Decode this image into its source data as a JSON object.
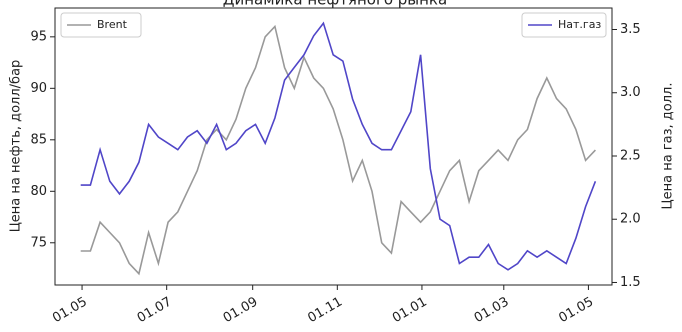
{
  "chart_data": {
    "type": "line",
    "title": "Динамика нефтяного рынка",
    "ylabel": "Цена на нефть, долл/бар",
    "y2label": "Цена на газ, долл.",
    "x": [
      -1,
      6,
      13,
      20,
      27,
      34,
      41,
      48,
      55,
      62,
      69,
      76,
      83,
      90,
      97,
      104,
      111,
      118,
      125,
      132,
      139,
      146,
      153,
      160,
      167,
      174,
      181,
      188,
      195,
      202,
      209,
      216,
      223,
      230,
      237,
      244,
      251,
      258,
      265,
      272,
      279,
      286,
      293,
      300,
      307,
      314,
      321,
      328,
      335,
      342,
      349,
      356,
      363,
      370
    ],
    "xlim": [
      -19.5,
      382
    ],
    "xticks": [
      {
        "value": 0,
        "label": "01.05"
      },
      {
        "value": 61,
        "label": "01.07"
      },
      {
        "value": 123,
        "label": "01.09"
      },
      {
        "value": 184,
        "label": "01.11"
      },
      {
        "value": 245,
        "label": "01.01"
      },
      {
        "value": 304,
        "label": "01.03"
      },
      {
        "value": 365,
        "label": "01.05"
      }
    ],
    "ylim": [
      70.9,
      97.8
    ],
    "yticks": [
      75,
      80,
      85,
      90,
      95
    ],
    "y2lim": [
      1.48,
      3.67
    ],
    "y2ticks": [
      1.5,
      {
        "value": 2,
        "label": "2.0"
      },
      2.5,
      {
        "value": 3,
        "label": "3.0"
      },
      3.5
    ],
    "grid": false,
    "series": [
      {
        "name": "Brent",
        "color": "#999999",
        "legend": "upper left",
        "values": [
          74.2,
          74.2,
          77,
          76,
          75,
          73,
          72,
          76,
          73,
          77,
          78,
          80,
          82,
          85,
          86,
          85,
          87,
          90,
          92,
          95,
          96,
          92,
          90,
          93,
          91,
          90,
          88,
          85,
          81,
          83,
          80,
          75,
          74,
          79,
          78,
          77,
          78,
          80,
          82,
          83,
          79,
          82,
          83,
          84,
          83,
          85,
          86,
          89,
          91,
          89,
          88,
          86,
          83,
          84
        ]
      },
      {
        "name": "Нат.газ",
        "color": "#5046c8",
        "axis": "y2",
        "legend": "upper right",
        "values": [
          2.27,
          2.27,
          2.55,
          2.3,
          2.2,
          2.3,
          2.45,
          2.75,
          2.65,
          2.6,
          2.55,
          2.65,
          2.7,
          2.6,
          2.75,
          2.55,
          2.6,
          2.7,
          2.75,
          2.6,
          2.8,
          3.1,
          3.2,
          3.3,
          3.45,
          3.55,
          3.3,
          3.25,
          2.95,
          2.75,
          2.6,
          2.55,
          2.55,
          2.7,
          2.85,
          3.3,
          2.4,
          2.0,
          1.95,
          1.65,
          1.7,
          1.7,
          1.8,
          1.65,
          1.6,
          1.65,
          1.75,
          1.7,
          1.75,
          1.7,
          1.65,
          1.85,
          2.1,
          2.3
        ]
      }
    ]
  }
}
